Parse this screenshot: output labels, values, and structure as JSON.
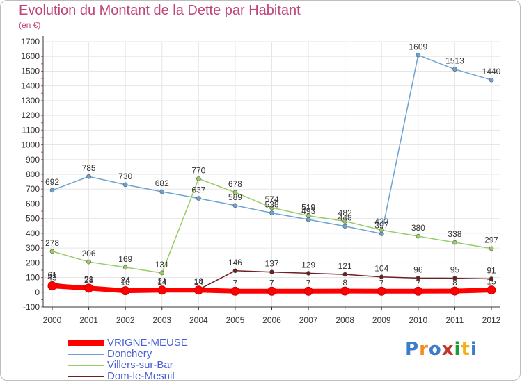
{
  "title": "Evolution du Montant de la Dette par Habitant",
  "subtitle": "(en €)",
  "logo": {
    "letters": [
      "P",
      "r",
      "o",
      "x",
      "i",
      "t",
      "i"
    ],
    "colors": [
      "#3a7ec9",
      "#f28c1e",
      "#3a7ec9",
      "#c0392b",
      "#1d9a3a",
      "#f2b21e",
      "#3a7ec9"
    ]
  },
  "colors": {
    "grid": "#e6e6e6",
    "axis": "#333333",
    "text": "#333333",
    "title": "#c0457a"
  },
  "chart_data": {
    "type": "line",
    "title": "Evolution du Montant de la Dette par Habitant",
    "ylabel": "(en €)",
    "xlabel": "",
    "ylim": [
      -100,
      1700
    ],
    "yticks": [
      -100,
      0,
      100,
      200,
      300,
      400,
      500,
      600,
      700,
      800,
      900,
      1000,
      1100,
      1200,
      1300,
      1400,
      1500,
      1600,
      1700
    ],
    "x": [
      "2000",
      "2001",
      "2002",
      "2003",
      "2004",
      "2005",
      "2006",
      "2007",
      "2008",
      "2009",
      "2010",
      "2011",
      "2012"
    ],
    "grid": true,
    "legend_position": "bottom-left",
    "series": [
      {
        "name": "VRIGNE-MEUSE",
        "color": "#ff0000",
        "values": [
          43,
          28,
          10,
          14,
          14,
          7,
          7,
          7,
          8,
          7,
          7,
          8,
          15
        ],
        "labels": [
          "43",
          "28",
          "10",
          "14",
          "14",
          "7",
          "7",
          "7",
          "8",
          "7",
          "7",
          "8",
          "15"
        ]
      },
      {
        "name": "Donchery",
        "color": "#6aa3d3",
        "values": [
          692,
          785,
          730,
          682,
          637,
          589,
          538,
          493,
          448,
          397,
          1609,
          1513,
          1440
        ],
        "labels": [
          "692",
          "785",
          "730",
          "682",
          "637",
          "589",
          "538",
          "493",
          "448",
          "397",
          "1609",
          "1513",
          "1440"
        ]
      },
      {
        "name": "Villers-sur-Bar",
        "color": "#99cc66",
        "values": [
          278,
          206,
          169,
          131,
          770,
          678,
          574,
          519,
          482,
          422,
          380,
          338,
          297
        ],
        "labels": [
          "278",
          "206",
          "169",
          "131",
          "770",
          "678",
          "574",
          "519",
          "482",
          "422",
          "380",
          "338",
          "297"
        ]
      },
      {
        "name": "Dom-le-Mesnil",
        "color": "#6b1f23",
        "values": [
          61,
          31,
          24,
          21,
          18,
          146,
          137,
          129,
          121,
          104,
          96,
          95,
          91
        ],
        "labels": [
          "61",
          "31",
          "24",
          "21",
          "18",
          "146",
          "137",
          "129",
          "121",
          "104",
          "96",
          "95",
          "91"
        ]
      }
    ]
  }
}
